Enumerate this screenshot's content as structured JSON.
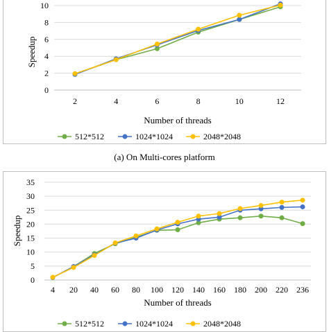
{
  "chart_data": [
    {
      "type": "line",
      "title": "",
      "xlabel": "Number of threads",
      "ylabel": "Speedup",
      "x": [
        2,
        4,
        6,
        8,
        10,
        12
      ],
      "ylim": [
        0,
        10
      ],
      "yticks": [
        0,
        2,
        4,
        6,
        8,
        10
      ],
      "grid": true,
      "legend_position": "bottom",
      "series": [
        {
          "name": "512*512",
          "color": "#70ad47",
          "values": [
            1.9,
            3.6,
            4.9,
            6.85,
            8.35,
            9.85
          ]
        },
        {
          "name": "1024*1024",
          "color": "#4472c4",
          "values": [
            1.85,
            3.7,
            5.35,
            7.05,
            8.35,
            10.2
          ]
        },
        {
          "name": "2048*2048",
          "color": "#ffc000",
          "values": [
            1.95,
            3.6,
            5.45,
            7.2,
            8.85,
            10.05
          ]
        }
      ]
    },
    {
      "type": "line",
      "title": "",
      "xlabel": "Number of threads",
      "ylabel": "Speedup",
      "x": [
        4,
        20,
        40,
        60,
        80,
        100,
        120,
        140,
        160,
        180,
        200,
        220,
        236
      ],
      "ylim": [
        0,
        35
      ],
      "yticks": [
        0,
        5,
        10,
        15,
        20,
        25,
        30,
        35
      ],
      "grid": true,
      "legend_position": "bottom",
      "series": [
        {
          "name": "512*512",
          "color": "#70ad47",
          "values": [
            0.9,
            4.8,
            9.5,
            13.0,
            15.3,
            17.8,
            18.0,
            20.5,
            21.8,
            22.3,
            22.9,
            22.3,
            20.2
          ]
        },
        {
          "name": "1024*1024",
          "color": "#4472c4",
          "values": [
            0.9,
            4.8,
            9.0,
            13.2,
            15.0,
            17.9,
            20.1,
            21.8,
            22.5,
            25.0,
            25.5,
            26.0,
            26.2
          ]
        },
        {
          "name": "2048*2048",
          "color": "#ffc000",
          "values": [
            1.0,
            4.5,
            8.8,
            13.3,
            15.8,
            18.3,
            20.7,
            22.9,
            23.8,
            25.6,
            26.7,
            27.9,
            28.6
          ]
        }
      ]
    }
  ],
  "captions": {
    "top": "(a)  On Multi-cores platform"
  }
}
